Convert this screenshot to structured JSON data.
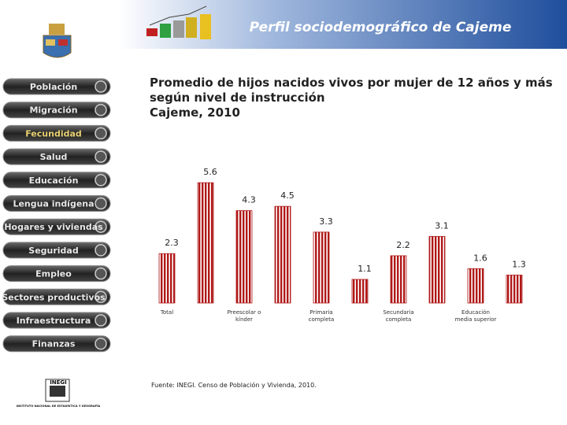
{
  "header": {
    "title": "Perfil sociodemográfico de Cajeme"
  },
  "menu": [
    "Población",
    "Migración",
    "Fecundidad",
    "Salud",
    "Educación",
    "Lengua indígena",
    "Hogares y viviendas",
    "Seguridad",
    "Empleo",
    "Sectores productivos",
    "Infraestructura",
    "Finanzas"
  ],
  "logo": {
    "name": "INEGI",
    "subtitle": "INSTITUTO NACIONAL DE ESTADÍSTICA Y GEOGRAFÍA"
  },
  "chart_data": {
    "type": "bar",
    "title": "Promedio de hijos nacidos vivos por mujer de 12 años y más\nsegún nivel de instrucción\nCajeme, 2010",
    "categories": [
      "Total",
      null,
      "Preescolar o kínder",
      null,
      "Primaria completa",
      null,
      "Secundaria completa",
      null,
      "Educación media superior",
      null
    ],
    "values": [
      2.3,
      5.6,
      4.3,
      4.5,
      3.3,
      1.1,
      2.2,
      3.1,
      1.6,
      1.3
    ],
    "color": "#b01818",
    "source": "Fuente: INEGI. Censo de Población y Vivienda, 2010."
  }
}
